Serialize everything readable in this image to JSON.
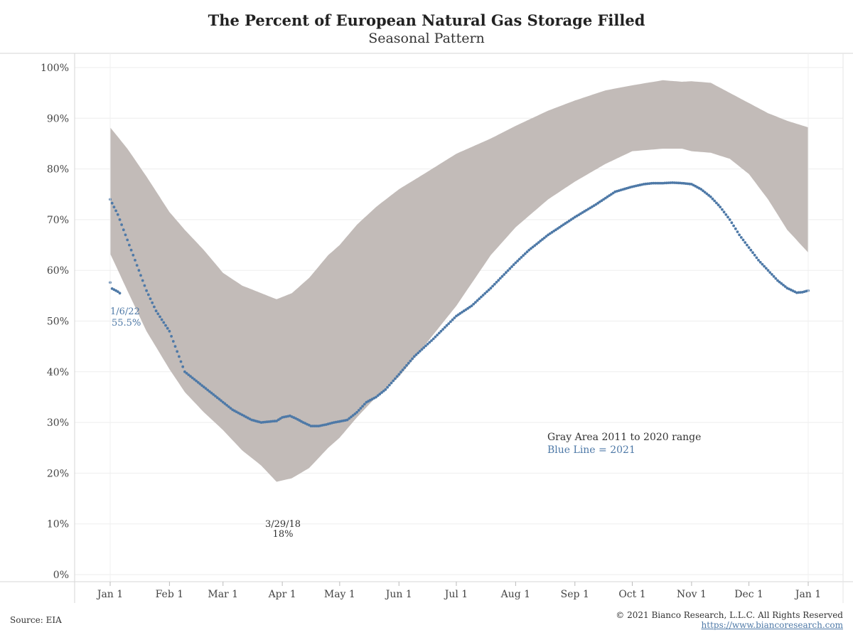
{
  "chart_data": {
    "type": "area",
    "title": "The Percent of European Natural Gas Storage Filled",
    "subtitle": "Seasonal Pattern",
    "xlabel": "",
    "ylabel": "",
    "ylim": [
      0,
      100
    ],
    "grid": true,
    "x_tick_labels": [
      "Jan 1",
      "Feb 1",
      "Mar 1",
      "Apr 1",
      "May 1",
      "Jun 1",
      "Jul 1",
      "Aug 1",
      "Sep 1",
      "Oct 1",
      "Nov 1",
      "Dec 1",
      "Jan 1"
    ],
    "x_tick_days": [
      1,
      32,
      60,
      91,
      121,
      152,
      182,
      213,
      244,
      274,
      305,
      335,
      366
    ],
    "y_tick_labels": [
      "0%",
      "10%",
      "20%",
      "30%",
      "40%",
      "50%",
      "60%",
      "70%",
      "80%",
      "90%",
      "100%"
    ],
    "y_tick_values": [
      0,
      10,
      20,
      30,
      40,
      50,
      60,
      70,
      80,
      90,
      100
    ],
    "range_band": {
      "days": [
        1,
        10,
        20,
        32,
        40,
        50,
        60,
        70,
        80,
        88,
        96,
        105,
        115,
        121,
        130,
        140,
        152,
        165,
        182,
        200,
        213,
        230,
        244,
        260,
        274,
        290,
        300,
        305,
        315,
        325,
        335,
        345,
        355,
        366
      ],
      "upper": [
        88.2,
        84,
        78.5,
        71.5,
        68,
        64,
        59.5,
        57,
        55.5,
        54.3,
        55.5,
        58.5,
        63,
        65,
        69,
        72.5,
        76,
        79,
        83,
        86,
        88.5,
        91.5,
        93.5,
        95.5,
        96.5,
        97.5,
        97.2,
        97.3,
        97,
        95,
        93,
        91,
        89.5,
        88.2
      ],
      "lower": [
        63.3,
        56,
        48,
        40.5,
        36,
        32,
        28.5,
        24.5,
        21.5,
        18.3,
        19,
        21,
        25,
        27,
        31,
        35,
        39,
        45,
        53,
        63,
        68.5,
        74,
        77.5,
        81,
        83.5,
        84,
        84,
        83.5,
        83.2,
        82,
        79,
        74,
        68,
        63.5
      ]
    },
    "series_2021": {
      "days": [
        1,
        5,
        10,
        15,
        20,
        25,
        32,
        40,
        45,
        50,
        55,
        60,
        65,
        70,
        75,
        80,
        85,
        88,
        91,
        95,
        98,
        102,
        106,
        110,
        114,
        118,
        121,
        125,
        130,
        135,
        140,
        145,
        152,
        160,
        170,
        182,
        190,
        200,
        213,
        220,
        230,
        244,
        255,
        265,
        274,
        280,
        285,
        290,
        295,
        300,
        305,
        310,
        315,
        320,
        325,
        330,
        335,
        340,
        345,
        350,
        355,
        360,
        363,
        366
      ],
      "values": [
        74,
        71,
        66,
        61,
        56,
        52,
        48,
        40,
        38.5,
        37,
        35.5,
        34,
        32.5,
        31.5,
        30.5,
        30,
        30.2,
        30.3,
        31,
        31.3,
        30.8,
        30,
        29.3,
        29.3,
        29.6,
        30,
        30.2,
        30.5,
        32,
        34,
        35,
        36.5,
        39.5,
        43,
        46.5,
        51,
        53,
        56.5,
        61.5,
        64,
        67,
        70.5,
        73,
        75.5,
        76.5,
        77,
        77.2,
        77.2,
        77.3,
        77.2,
        77,
        76,
        74.5,
        72.5,
        70,
        67,
        64.5,
        62,
        60,
        58,
        56.5,
        55.6,
        55.7,
        56
      ]
    },
    "series_2022": {
      "days": [
        1,
        2,
        3,
        4,
        5,
        6
      ],
      "values": [
        57.6,
        56.4,
        56.2,
        56,
        55.8,
        55.5
      ]
    },
    "annotations": {
      "latest_date": "1/6/22",
      "latest_value": "55.5%",
      "min_date": "3/29/18",
      "min_value": "18%"
    },
    "legend": {
      "gray": "Gray Area 2011 to 2020 range",
      "blue": "Blue Line = 2021"
    },
    "colors": {
      "band": "#c2bbb8",
      "line": "#4e79a7",
      "grid": "#eeeeee"
    }
  },
  "footer": {
    "source": "Source: EIA",
    "copyright": "© 2021 Bianco Research, L.L.C. All Rights Reserved",
    "website": "https://www.biancoresearch.com"
  }
}
